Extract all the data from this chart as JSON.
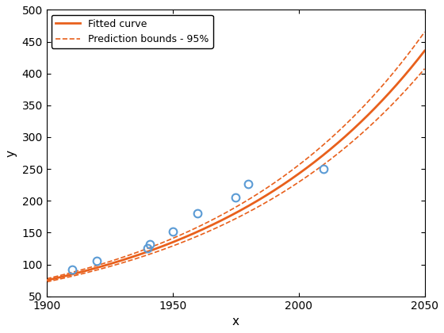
{
  "title": "",
  "xlabel": "x",
  "ylabel": "y",
  "xlim": [
    1900,
    2050
  ],
  "ylim": [
    50,
    500
  ],
  "xticks": [
    1900,
    1950,
    2000,
    2050
  ],
  "yticks": [
    50,
    100,
    150,
    200,
    250,
    300,
    350,
    400,
    450,
    500
  ],
  "data_x": [
    1910,
    1920,
    1940,
    1941,
    1950,
    1960,
    1975,
    1980,
    2010
  ],
  "data_y": [
    92,
    105,
    125,
    132,
    152,
    180,
    205,
    227,
    250
  ],
  "fit_color": "#E8601C",
  "bounds_color": "#E8601C",
  "data_color": "#5B9BD5",
  "legend_fitted": "Fitted curve",
  "legend_bounds": "Prediction bounds - 95%",
  "fit_A": 75.0,
  "fit_k": 0.01173,
  "upper_A": 77.5,
  "upper_k": 0.01195,
  "lower_A": 72.5,
  "lower_k": 0.01151
}
